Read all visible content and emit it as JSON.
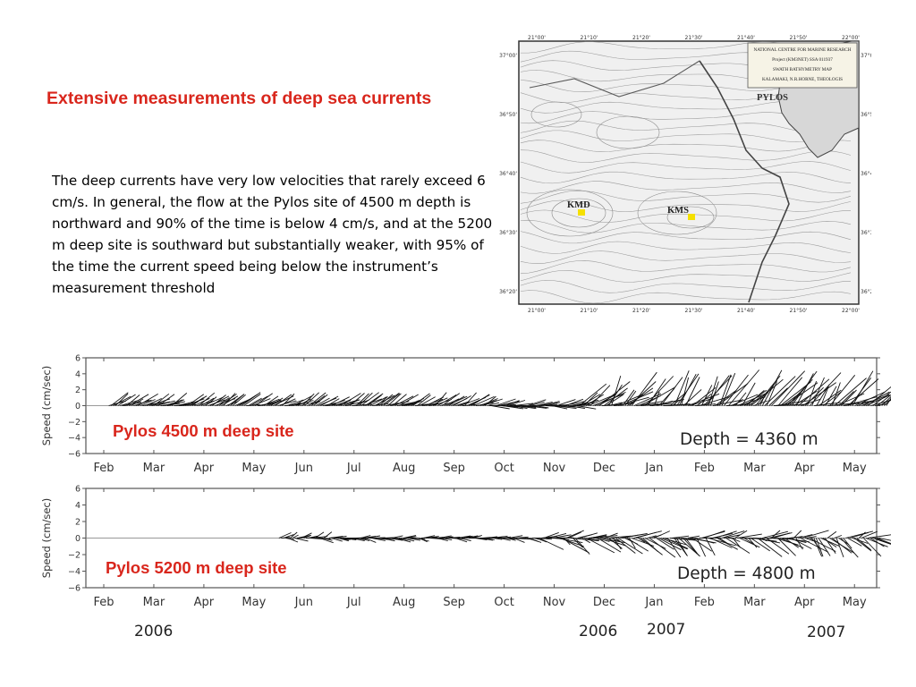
{
  "slide": {
    "title": "Extensive measurements of deep sea currents",
    "body": "The deep currents have very low velocities that rarely exceed 6 cm/s. In general, the flow at the Pylos site of 4500 m depth is northward and 90% of the time is below 4 cm/s, and at the 5200 m deep site is southward but substantially weaker, with 95% of the time the current speed being below the instrument’s measurement threshold"
  },
  "map": {
    "place_label": "PYLOS",
    "site_labels": [
      "KMD",
      "KMS"
    ],
    "site_marker_color": "#f5e000",
    "top_ticks": [
      "21°00'",
      "21°10'",
      "21°20'",
      "21°30'",
      "21°40'",
      "21°50'",
      "22°00'"
    ],
    "bottom_ticks": [
      "21°00'",
      "21°10'",
      "21°20'",
      "21°30'",
      "21°40'",
      "21°50'",
      "22°00'"
    ],
    "left_ticks": [
      "37°00'",
      "36°50'",
      "36°40'",
      "36°30'",
      "36°20'"
    ],
    "right_ticks": [
      "37°00'",
      "36°50'",
      "36°40'",
      "36°30'",
      "36°20'"
    ],
    "legend_lines": [
      "NATIONAL CENTRE FOR MARINE RESEARCH",
      "Project (KM3NET) SSA 011937",
      "SWATH BATHYMETRY MAP",
      "KALAMAKI, N.R.HORNE, THEOLOGIS"
    ]
  },
  "chart_data": [
    {
      "type": "vector-stick",
      "site_label": "Pylos  4500 m deep site",
      "depth_annotation": "Depth = 4360 m",
      "ylabel": "Speed (cm/sec)",
      "ylim": [
        -6,
        6
      ],
      "yticks": [
        "6",
        "4",
        "2",
        "0",
        "−2",
        "−4",
        "−6"
      ],
      "ytick_values": [
        6,
        4,
        2,
        0,
        -2,
        -4,
        -6
      ],
      "months": [
        "Feb",
        "Mar",
        "Apr",
        "May",
        "Jun",
        "Jul",
        "Aug",
        "Sep",
        "Oct",
        "Nov",
        "Dec",
        "Jan",
        "Feb",
        "Mar",
        "Apr",
        "May"
      ],
      "segments": [
        {
          "start": 0.1,
          "end": 7.7,
          "u": 2.2,
          "v": 0.9,
          "var": 0.7
        },
        {
          "start": 7.7,
          "end": 9.5,
          "u": 2.6,
          "v": 0.2,
          "var": 0.6
        },
        {
          "start": 9.5,
          "end": 10.1,
          "u": 3.0,
          "v": 1.5,
          "var": 1.5
        },
        {
          "start": 10.1,
          "end": 15.65,
          "u": 2.7,
          "v": 2.3,
          "var": 2.0
        }
      ]
    },
    {
      "type": "vector-stick",
      "site_label": "Pylos  5200 m deep site",
      "depth_annotation": "Depth = 4800 m",
      "ylabel": "Speed (cm/sec)",
      "ylim": [
        -6,
        6
      ],
      "yticks": [
        "6",
        "4",
        "2",
        "0",
        "−2",
        "−4",
        "−6"
      ],
      "ytick_values": [
        6,
        4,
        2,
        0,
        -2,
        -4,
        -6
      ],
      "months": [
        "Feb",
        "Mar",
        "Apr",
        "May",
        "Jun",
        "Jul",
        "Aug",
        "Sep",
        "Oct",
        "Nov",
        "Dec",
        "Jan",
        "Feb",
        "Mar",
        "Apr",
        "May"
      ],
      "years": [
        "2006",
        "2006",
        "2007",
        "2007"
      ],
      "segments": [
        {
          "start": 3.5,
          "end": 4.4,
          "u": 1.4,
          "v": 0.1,
          "var": 0.6
        },
        {
          "start": 4.5,
          "end": 8.7,
          "u": 1.5,
          "v": -0.1,
          "var": 0.4
        },
        {
          "start": 8.7,
          "end": 15.5,
          "u": 2.3,
          "v": -0.7,
          "var": 1.5
        }
      ]
    }
  ]
}
